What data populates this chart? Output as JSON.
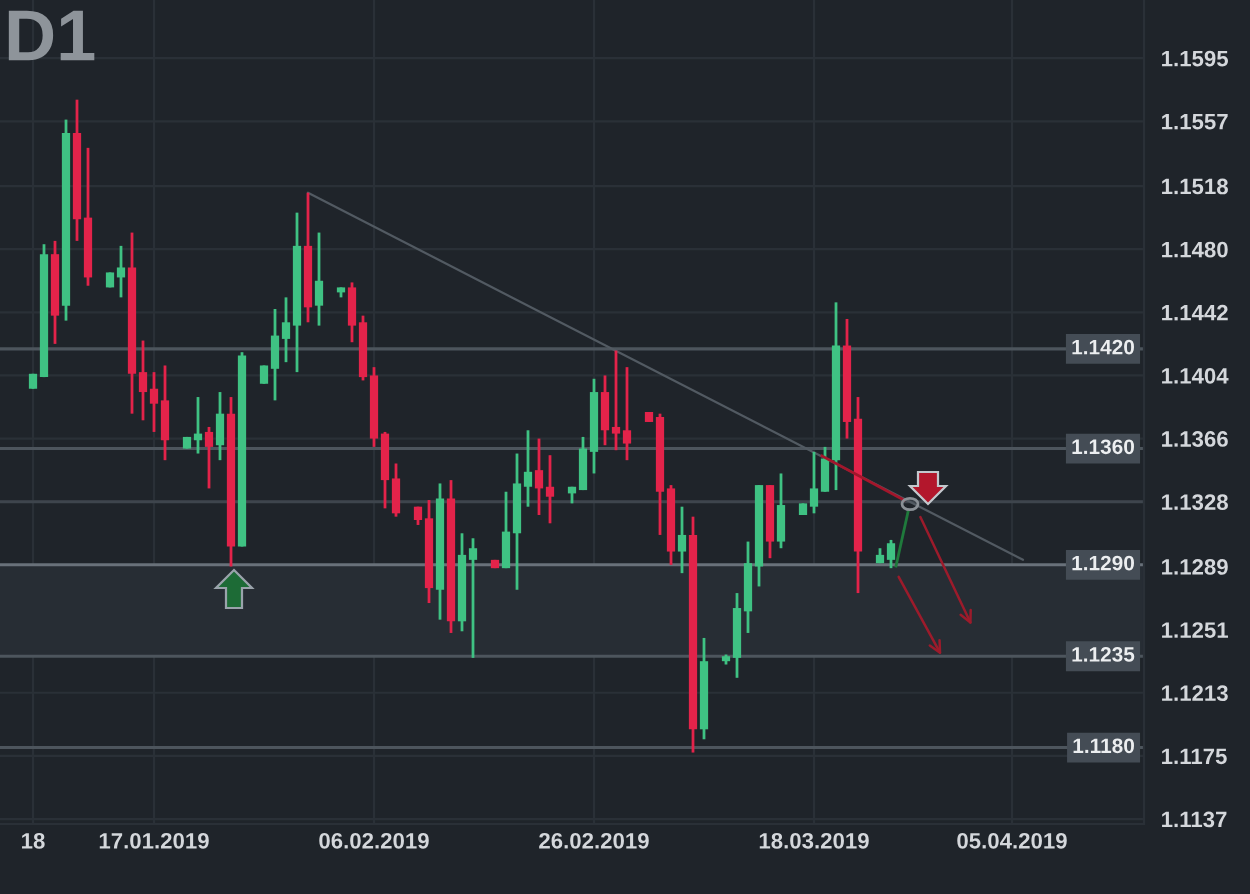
{
  "chart_data": {
    "type": "candlestick",
    "title": "D1",
    "series": [
      {
        "x": [
          "2019-01-06",
          "2019-01-07",
          "2019-01-08",
          "2019-01-09",
          "2019-01-10",
          "2019-01-11",
          "2019-01-13",
          "2019-01-14",
          "2019-01-15",
          "2019-01-16",
          "2019-01-17",
          "2019-01-18",
          "2019-01-20",
          "2019-01-21",
          "2019-01-22",
          "2019-01-23",
          "2019-01-24",
          "2019-01-25",
          "2019-01-27",
          "2019-01-28",
          "2019-01-29",
          "2019-01-30",
          "2019-01-31",
          "2019-02-01",
          "2019-02-03",
          "2019-02-04",
          "2019-02-05",
          "2019-02-06",
          "2019-02-07",
          "2019-02-08",
          "2019-02-10",
          "2019-02-11",
          "2019-02-12",
          "2019-02-13",
          "2019-02-14",
          "2019-02-15",
          "2019-02-17",
          "2019-02-18",
          "2019-02-19",
          "2019-02-20",
          "2019-02-21",
          "2019-02-22",
          "2019-02-24",
          "2019-02-25",
          "2019-02-26",
          "2019-02-27",
          "2019-02-28",
          "2019-03-01",
          "2019-03-03",
          "2019-03-04",
          "2019-03-05",
          "2019-03-06",
          "2019-03-07",
          "2019-03-08",
          "2019-03-10",
          "2019-03-11",
          "2019-03-12",
          "2019-03-13",
          "2019-03-14",
          "2019-03-15",
          "2019-03-17",
          "2019-03-18",
          "2019-03-19",
          "2019-03-20",
          "2019-03-21",
          "2019-03-22",
          "2019-03-24",
          "2019-03-25"
        ],
        "ohlc": [
          [
            1.1396,
            1.1405,
            1.1396,
            1.1405
          ],
          [
            1.1403,
            1.1483,
            1.1403,
            1.1477
          ],
          [
            1.1477,
            1.1485,
            1.1423,
            1.144
          ],
          [
            1.1446,
            1.1558,
            1.1437,
            1.155
          ],
          [
            1.155,
            1.157,
            1.1485,
            1.1498
          ],
          [
            1.1499,
            1.1541,
            1.1458,
            1.1463
          ],
          [
            1.1457,
            1.1466,
            1.1457,
            1.1466
          ],
          [
            1.1463,
            1.1482,
            1.1451,
            1.1469
          ],
          [
            1.1469,
            1.149,
            1.1381,
            1.1405
          ],
          [
            1.1406,
            1.1425,
            1.1377,
            1.1394
          ],
          [
            1.1396,
            1.1406,
            1.137,
            1.1387
          ],
          [
            1.1389,
            1.141,
            1.1353,
            1.1365
          ],
          [
            1.136,
            1.1367,
            1.136,
            1.1367
          ],
          [
            1.1365,
            1.1391,
            1.1357,
            1.1369
          ],
          [
            1.137,
            1.1373,
            1.1336,
            1.1361
          ],
          [
            1.1362,
            1.1394,
            1.1353,
            1.1381
          ],
          [
            1.1381,
            1.1391,
            1.1289,
            1.1301
          ],
          [
            1.1301,
            1.1418,
            1.1301,
            1.1416
          ],
          [
            1.1399,
            1.141,
            1.1399,
            1.141
          ],
          [
            1.1408,
            1.1444,
            1.1389,
            1.1428
          ],
          [
            1.1426,
            1.1451,
            1.1412,
            1.1436
          ],
          [
            1.1434,
            1.1502,
            1.1406,
            1.1482
          ],
          [
            1.1482,
            1.1514,
            1.1436,
            1.1445
          ],
          [
            1.1446,
            1.149,
            1.1434,
            1.1461
          ],
          [
            1.1454,
            1.1457,
            1.1451,
            1.1457
          ],
          [
            1.1457,
            1.146,
            1.1424,
            1.1434
          ],
          [
            1.1436,
            1.144,
            1.1401,
            1.1403
          ],
          [
            1.1404,
            1.1409,
            1.1361,
            1.1366
          ],
          [
            1.1369,
            1.137,
            1.1324,
            1.1341
          ],
          [
            1.1342,
            1.1351,
            1.1319,
            1.1321
          ],
          [
            1.1325,
            1.1325,
            1.1314,
            1.1317
          ],
          [
            1.1318,
            1.1329,
            1.1267,
            1.1276
          ],
          [
            1.1275,
            1.1339,
            1.1257,
            1.133
          ],
          [
            1.133,
            1.1341,
            1.1249,
            1.1256
          ],
          [
            1.1256,
            1.1309,
            1.125,
            1.1296
          ],
          [
            1.1293,
            1.1306,
            1.1234,
            1.13
          ],
          [
            1.1293,
            1.1293,
            1.1288,
            1.1288
          ],
          [
            1.1288,
            1.1334,
            1.1288,
            1.131
          ],
          [
            1.1309,
            1.1357,
            1.1275,
            1.1339
          ],
          [
            1.1337,
            1.1371,
            1.1325,
            1.1346
          ],
          [
            1.1347,
            1.1366,
            1.132,
            1.1336
          ],
          [
            1.1337,
            1.1356,
            1.1315,
            1.1331
          ],
          [
            1.1333,
            1.1337,
            1.1327,
            1.1337
          ],
          [
            1.1335,
            1.1367,
            1.1335,
            1.136
          ],
          [
            1.1358,
            1.1402,
            1.1345,
            1.1394
          ],
          [
            1.1394,
            1.1404,
            1.1362,
            1.1371
          ],
          [
            1.1373,
            1.1419,
            1.1359,
            1.1369
          ],
          [
            1.1371,
            1.1409,
            1.1353,
            1.1363
          ],
          [
            1.1382,
            1.1382,
            1.1376,
            1.1376
          ],
          [
            1.1379,
            1.1381,
            1.1308,
            1.1334
          ],
          [
            1.1336,
            1.1338,
            1.129,
            1.1298
          ],
          [
            1.1298,
            1.1325,
            1.1285,
            1.1308
          ],
          [
            1.1308,
            1.1319,
            1.1177,
            1.1191
          ],
          [
            1.1191,
            1.1246,
            1.1185,
            1.1232
          ],
          [
            1.1232,
            1.1236,
            1.123,
            1.1235
          ],
          [
            1.1234,
            1.1273,
            1.1222,
            1.1264
          ],
          [
            1.1262,
            1.1304,
            1.1249,
            1.1291
          ],
          [
            1.1289,
            1.1338,
            1.1277,
            1.1338
          ],
          [
            1.1338,
            1.1338,
            1.1294,
            1.1304
          ],
          [
            1.1304,
            1.1345,
            1.13,
            1.1326
          ],
          [
            1.132,
            1.1327,
            1.132,
            1.1327
          ],
          [
            1.1325,
            1.1358,
            1.1321,
            1.1336
          ],
          [
            1.1334,
            1.1361,
            1.1334,
            1.1354
          ],
          [
            1.1353,
            1.1448,
            1.1335,
            1.1422
          ],
          [
            1.1422,
            1.1438,
            1.1366,
            1.1376
          ],
          [
            1.1378,
            1.1391,
            1.1273,
            1.1298
          ],
          [
            1.1291,
            1.13,
            1.1291,
            1.1296
          ],
          [
            1.1293,
            1.1305,
            1.1288,
            1.1303
          ]
        ],
        "colors": [
          "#3fc283",
          "#3fc283",
          "#e3234a",
          "#3fc283",
          "#e3234a",
          "#e3234a",
          "#3fc283",
          "#3fc283",
          "#e3234a",
          "#e3234a",
          "#e3234a",
          "#e3234a",
          "#3fc283",
          "#3fc283",
          "#e3234a",
          "#3fc283",
          "#e3234a",
          "#3fc283",
          "#3fc283",
          "#3fc283",
          "#3fc283",
          "#3fc283",
          "#e3234a",
          "#3fc283",
          "#3fc283",
          "#e3234a",
          "#e3234a",
          "#e3234a",
          "#e3234a",
          "#e3234a",
          "#e3234a",
          "#e3234a",
          "#3fc283",
          "#e3234a",
          "#3fc283",
          "#3fc283",
          "#e3234a",
          "#3fc283",
          "#3fc283",
          "#3fc283",
          "#e3234a",
          "#e3234a",
          "#3fc283",
          "#3fc283",
          "#3fc283",
          "#e3234a",
          "#e3234a",
          "#e3234a",
          "#e3234a",
          "#e3234a",
          "#e3234a",
          "#3fc283",
          "#e3234a",
          "#3fc283",
          "#3fc283",
          "#3fc283",
          "#3fc283",
          "#3fc283",
          "#e3234a",
          "#3fc283",
          "#3fc283",
          "#3fc283",
          "#3fc283",
          "#3fc283",
          "#e3234a",
          "#e3234a",
          "#3fc283",
          "#3fc283"
        ]
      },
      {
        "type": "line",
        "x": [
          "2019-01-31",
          "2019-04-06"
        ],
        "values": [
          1.1514,
          1.1293
        ],
        "color": "#525a62"
      }
    ],
    "xlim": [
      "2019-01-03",
      "2019-04-17"
    ],
    "xticks": [
      {
        "value": "2019-01-06",
        "label": "18"
      },
      {
        "value": "2019-01-17",
        "label": "17.01.2019"
      },
      {
        "value": "2019-02-06",
        "label": "06.02.2019"
      },
      {
        "value": "2019-02-26",
        "label": "26.02.2019"
      },
      {
        "value": "2019-03-18",
        "label": "18.03.2019"
      },
      {
        "value": "2019-04-05",
        "label": "05.04.2019"
      }
    ],
    "ylim": [
      1.1134,
      1.163
    ],
    "yticks": [
      1.1137,
      1.1175,
      1.1213,
      1.1251,
      1.1289,
      1.1328,
      1.1366,
      1.1404,
      1.1442,
      {
        "value": 1.148,
        "label": "1.1480"
      },
      1.1518,
      1.1557,
      1.1595
    ],
    "grid": true,
    "ref_lines": [
      {
        "axis": "y",
        "value": 1.142,
        "label": "1.1420",
        "color": "#4d555d"
      },
      {
        "axis": "y",
        "value": 1.136,
        "label": "1.1360",
        "color": "#4d555d"
      },
      {
        "axis": "y",
        "value": 1.1328,
        "color": "#3e454d"
      },
      {
        "axis": "y",
        "value": 1.129,
        "label": "1.1290",
        "color": "#69717a"
      },
      {
        "axis": "y",
        "value": 1.1235,
        "label": "1.1235",
        "color": "#4d555d"
      },
      {
        "axis": "y",
        "value": 1.118,
        "label": "1.1180",
        "color": "#4d555d"
      }
    ],
    "bands": [
      {
        "axis": "y",
        "from": 1.1235,
        "to": 1.129,
        "color": "#272d34"
      }
    ]
  }
}
